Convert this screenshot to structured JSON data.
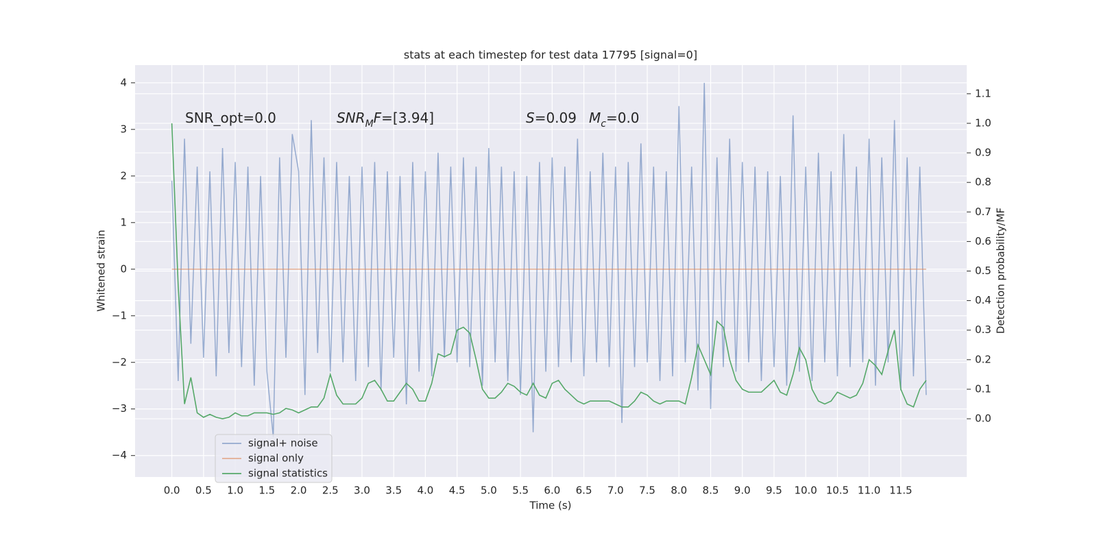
{
  "chart_data": {
    "type": "line",
    "title": "stats at each timestep for test data 17795 [signal=0]",
    "x_label": "Time (s)",
    "y_label": "Whitened strain",
    "y2_label": "Detection probability/MF",
    "grid": true,
    "legend": "lower left",
    "xlim": [
      -0.58,
      12.54
    ],
    "ylim": [
      -4.46,
      4.38
    ],
    "y2lim": [
      -0.197,
      1.197
    ],
    "xticks": [
      {
        "value": 0,
        "label": "0.0"
      },
      0.5,
      {
        "value": 1,
        "label": "1.0"
      },
      1.5,
      {
        "value": 2,
        "label": "2.0"
      },
      2.5,
      {
        "value": 3,
        "label": "3.0"
      },
      3.5,
      {
        "value": 4,
        "label": "4.0"
      },
      4.5,
      {
        "value": 5,
        "label": "5.0"
      },
      5.5,
      {
        "value": 6,
        "label": "6.0"
      },
      6.5,
      {
        "value": 7,
        "label": "7.0"
      },
      7.5,
      {
        "value": 8,
        "label": "8.0"
      },
      8.5,
      {
        "value": 9,
        "label": "9.0"
      },
      9.5,
      {
        "value": 10,
        "label": "10.0"
      },
      10.5,
      {
        "value": 11,
        "label": "11.0"
      },
      11.5
    ],
    "yticks": [
      {
        "value": -4,
        "label": "−4"
      },
      {
        "value": -3,
        "label": "−3"
      },
      {
        "value": -2,
        "label": "−2"
      },
      {
        "value": -1,
        "label": "−1"
      },
      0,
      1,
      2,
      3,
      4
    ],
    "y2ticks": [
      {
        "value": 0,
        "label": "0.0"
      },
      0.1,
      0.2,
      0.3,
      0.4,
      0.5,
      0.6,
      0.7,
      0.8,
      0.9,
      {
        "value": 1,
        "label": "1.0"
      },
      1.1
    ],
    "annotations": [
      {
        "parts": [
          {
            "text": "SNR_opt=0.0"
          }
        ]
      },
      {
        "parts": [
          {
            "text": "SNR",
            "style": "italic"
          },
          {
            "text": "M",
            "style": "italic-sub"
          },
          {
            "text": "F",
            "style": "italic"
          },
          {
            "text": "=[3.94]"
          }
        ]
      },
      {
        "parts": [
          {
            "text": "S",
            "style": "italic"
          },
          {
            "text": "=0.09"
          }
        ]
      },
      {
        "parts": [
          {
            "text": "M",
            "style": "italic"
          },
          {
            "text": "c",
            "style": "italic-sub"
          },
          {
            "text": "=0.0"
          }
        ]
      }
    ],
    "x": [
      0,
      0.1,
      0.2,
      0.3,
      0.4,
      0.5,
      0.6,
      0.7,
      0.8,
      0.9,
      1,
      1.1,
      1.2,
      1.3,
      1.4,
      1.5,
      1.6,
      1.7,
      1.8,
      1.9,
      2,
      2.1,
      2.2,
      2.3,
      2.4,
      2.5,
      2.6,
      2.7,
      2.8,
      2.9,
      3,
      3.1,
      3.2,
      3.3,
      3.4,
      3.5,
      3.6,
      3.7,
      3.8,
      3.9,
      4,
      4.1,
      4.2,
      4.3,
      4.4,
      4.5,
      4.6,
      4.7,
      4.8,
      4.9,
      5,
      5.1,
      5.2,
      5.3,
      5.4,
      5.5,
      5.6,
      5.7,
      5.8,
      5.9,
      6,
      6.1,
      6.2,
      6.3,
      6.4,
      6.5,
      6.6,
      6.7,
      6.8,
      6.9,
      7,
      7.1,
      7.2,
      7.3,
      7.4,
      7.5,
      7.6,
      7.7,
      7.8,
      7.9,
      8,
      8.1,
      8.2,
      8.3,
      8.4,
      8.5,
      8.6,
      8.7,
      8.8,
      8.9,
      9,
      9.1,
      9.2,
      9.3,
      9.4,
      9.5,
      9.6,
      9.7,
      9.8,
      9.9,
      10,
      10.1,
      10.2,
      10.3,
      10.4,
      10.5,
      10.6,
      10.7,
      10.8,
      10.9,
      11,
      11.1,
      11.2,
      11.3,
      11.4,
      11.5,
      11.6,
      11.7,
      11.8,
      11.9
    ],
    "series": [
      {
        "name": "signal+ noise",
        "color": "rgba(76,114,176,0.55)",
        "axis": "y",
        "values": [
          1.9,
          -2.4,
          2.8,
          -1.6,
          2.2,
          -1.9,
          2.1,
          -2.3,
          2.6,
          -1.8,
          2.3,
          -2.1,
          2.2,
          -2.5,
          2.0,
          -2.2,
          -3.6,
          2.4,
          -1.9,
          2.9,
          2.1,
          -2.7,
          3.2,
          -1.8,
          2.4,
          -2.2,
          2.3,
          -2.0,
          2.0,
          -2.4,
          2.2,
          -2.1,
          2.3,
          -2.6,
          2.1,
          -1.9,
          2.0,
          -2.9,
          2.3,
          -2.2,
          2.1,
          -2.3,
          2.5,
          -1.9,
          2.2,
          -2.0,
          2.4,
          -2.1,
          2.2,
          -2.5,
          2.6,
          -2.0,
          2.2,
          -2.4,
          2.1,
          -2.7,
          2.0,
          -3.5,
          2.3,
          -2.2,
          2.4,
          -2.1,
          2.2,
          -2.0,
          2.8,
          -2.3,
          2.1,
          -2.0,
          2.5,
          -2.1,
          2.2,
          -3.3,
          2.3,
          -2.1,
          2.7,
          -2.0,
          2.2,
          -2.4,
          2.1,
          -2.3,
          3.5,
          -2.0,
          2.2,
          -2.6,
          4.0,
          -3.0,
          2.4,
          -2.1,
          2.8,
          -2.2,
          2.3,
          -2.0,
          2.2,
          -2.4,
          2.1,
          -2.1,
          2.0,
          -2.5,
          3.3,
          -2.2,
          2.2,
          -2.4,
          2.5,
          -2.0,
          2.1,
          -2.3,
          2.9,
          -2.1,
          2.2,
          -2.0,
          2.8,
          -2.5,
          2.4,
          -2.0,
          3.2,
          -2.6,
          2.4,
          -2.3,
          2.2,
          -2.7
        ]
      },
      {
        "name": "signal only",
        "color": "rgba(221,132,82,0.6)",
        "axis": "y",
        "values": [
          0,
          0,
          0,
          0,
          0,
          0,
          0,
          0,
          0,
          0,
          0,
          0,
          0,
          0,
          0,
          0,
          0,
          0,
          0,
          0,
          0,
          0,
          0,
          0,
          0,
          0,
          0,
          0,
          0,
          0,
          0,
          0,
          0,
          0,
          0,
          0,
          0,
          0,
          0,
          0,
          0,
          0,
          0,
          0,
          0,
          0,
          0,
          0,
          0,
          0,
          0,
          0,
          0,
          0,
          0,
          0,
          0,
          0,
          0,
          0,
          0,
          0,
          0,
          0,
          0,
          0,
          0,
          0,
          0,
          0,
          0,
          0,
          0,
          0,
          0,
          0,
          0,
          0,
          0,
          0,
          0,
          0,
          0,
          0,
          0,
          0,
          0,
          0,
          0,
          0,
          0,
          0,
          0,
          0,
          0,
          0,
          0,
          0,
          0,
          0,
          0,
          0,
          0,
          0,
          0,
          0,
          0,
          0,
          0,
          0,
          0,
          0,
          0,
          0,
          0,
          0,
          0,
          0,
          0,
          0
        ]
      },
      {
        "name": "signal statistics",
        "color": "#55a868",
        "axis": "y2",
        "values": [
          1.0,
          0.45,
          0.05,
          0.14,
          0.02,
          0.005,
          0.015,
          0.005,
          0.0,
          0.005,
          0.02,
          0.01,
          0.01,
          0.02,
          0.02,
          0.02,
          0.015,
          0.02,
          0.035,
          0.03,
          0.02,
          0.03,
          0.04,
          0.04,
          0.07,
          0.15,
          0.08,
          0.05,
          0.05,
          0.05,
          0.07,
          0.12,
          0.13,
          0.1,
          0.06,
          0.06,
          0.09,
          0.12,
          0.1,
          0.06,
          0.06,
          0.12,
          0.22,
          0.21,
          0.22,
          0.3,
          0.31,
          0.29,
          0.2,
          0.1,
          0.07,
          0.07,
          0.09,
          0.12,
          0.11,
          0.09,
          0.08,
          0.12,
          0.08,
          0.07,
          0.12,
          0.13,
          0.1,
          0.08,
          0.06,
          0.05,
          0.06,
          0.06,
          0.06,
          0.06,
          0.05,
          0.04,
          0.04,
          0.06,
          0.09,
          0.08,
          0.06,
          0.05,
          0.06,
          0.06,
          0.06,
          0.05,
          0.14,
          0.25,
          0.2,
          0.15,
          0.33,
          0.31,
          0.2,
          0.13,
          0.1,
          0.09,
          0.09,
          0.09,
          0.11,
          0.13,
          0.09,
          0.08,
          0.15,
          0.24,
          0.2,
          0.1,
          0.06,
          0.05,
          0.06,
          0.09,
          0.08,
          0.07,
          0.08,
          0.12,
          0.2,
          0.18,
          0.15,
          0.23,
          0.3,
          0.1,
          0.05,
          0.04,
          0.1,
          0.13
        ]
      }
    ]
  }
}
